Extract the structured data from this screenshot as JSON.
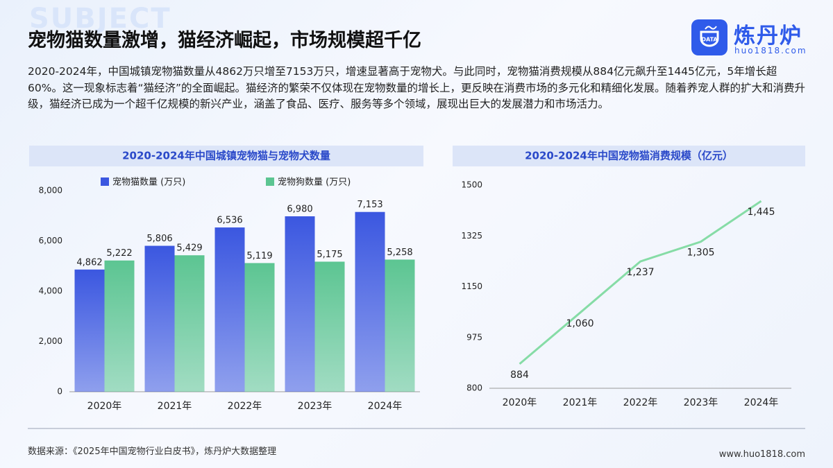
{
  "header": {
    "watermark": "SUBJECT",
    "title": "宠物猫数量激增，猫经济崛起，市场规模超千亿",
    "logo_badge": "DATA",
    "logo_name": "炼丹炉",
    "logo_url": "huo1818.com"
  },
  "paragraph": "2020-2024年，中国城镇宠物猫数量从4862万只增至7153万只，增速显著高于宠物犬。与此同时，宠物猫消费规模从884亿元飙升至1445亿元，5年增长超60%。这一现象标志着“猫经济”的全面崛起。猫经济的繁荣不仅体现在宠物数量的增长上，更反映在消费市场的多元化和精细化发展。随着养宠人群的扩大和消费升级，猫经济已成为一个超千亿规模的新兴产业，涵盖了食品、医疗、服务等多个领域，展现出巨大的发展潜力和市场活力。",
  "chart_data": [
    {
      "type": "bar",
      "title": "2020-2024年中国城镇宠物猫与宠物犬数量",
      "categories": [
        "2020年",
        "2021年",
        "2022年",
        "2023年",
        "2024年"
      ],
      "series": [
        {
          "name": "宠物猫数量 (万只)",
          "color": "#3b57e0",
          "values": [
            4862,
            5806,
            6536,
            6980,
            7153
          ],
          "value_labels": [
            "4,862",
            "5,806",
            "6,536",
            "6,980",
            "7,153"
          ]
        },
        {
          "name": "宠物狗数量 (万只)",
          "color": "#5cc592",
          "values": [
            5222,
            5429,
            5119,
            5175,
            5258
          ],
          "value_labels": [
            "5,222",
            "5,429",
            "5,119",
            "5,175",
            "5,258"
          ]
        }
      ],
      "ylim": [
        0,
        8000
      ],
      "yticks": [
        0,
        {
          "value": 2000,
          "label": "2,000"
        },
        {
          "value": 4000,
          "label": "4,000"
        },
        {
          "value": 6000,
          "label": "6,000"
        },
        {
          "value": 8000,
          "label": "8,000"
        }
      ],
      "grid": false
    },
    {
      "type": "line",
      "title": "2020-2024年中国宠物猫消费规模（亿元）",
      "categories": [
        "2020年",
        "2021年",
        "2022年",
        "2023年",
        "2024年"
      ],
      "values": [
        884,
        1060,
        1237,
        1305,
        1445
      ],
      "value_labels": [
        "884",
        "1,060",
        "1,237",
        "1,305",
        "1,445"
      ],
      "color": "#86dca6",
      "ylim": [
        800,
        1500
      ],
      "yticks": [
        800,
        975,
        1150,
        1325,
        1500
      ],
      "grid": false
    }
  ],
  "footer": {
    "source": "数据来源：《2025年中国宠物行业白皮书》，炼丹炉大数据整理",
    "website": "www.huo1818.com"
  }
}
